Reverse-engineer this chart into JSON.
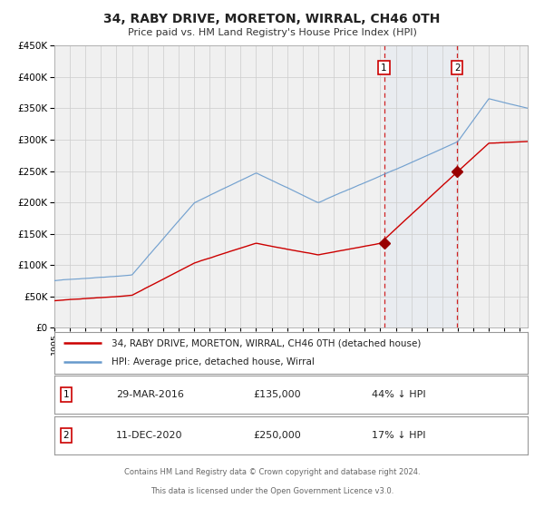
{
  "title": "34, RABY DRIVE, MORETON, WIRRAL, CH46 0TH",
  "subtitle": "Price paid vs. HM Land Registry's House Price Index (HPI)",
  "legend_line1": "34, RABY DRIVE, MORETON, WIRRAL, CH46 0TH (detached house)",
  "legend_line2": "HPI: Average price, detached house, Wirral",
  "sale1_date": "29-MAR-2016",
  "sale1_price": 135000,
  "sale1_pct": "44% ↓ HPI",
  "sale2_date": "11-DEC-2020",
  "sale2_price": 250000,
  "sale2_pct": "17% ↓ HPI",
  "sale1_year": 2016.24,
  "sale2_year": 2020.95,
  "hpi_color": "#6699cc",
  "price_color": "#cc0000",
  "marker_color": "#990000",
  "background_color": "#ffffff",
  "plot_bg_color": "#f0f0f0",
  "shade_color": "#dce6f1",
  "footer_line1": "Contains HM Land Registry data © Crown copyright and database right 2024.",
  "footer_line2": "This data is licensed under the Open Government Licence v3.0.",
  "ylim": [
    0,
    450000
  ],
  "xlim_start": 1995.0,
  "xlim_end": 2025.5
}
